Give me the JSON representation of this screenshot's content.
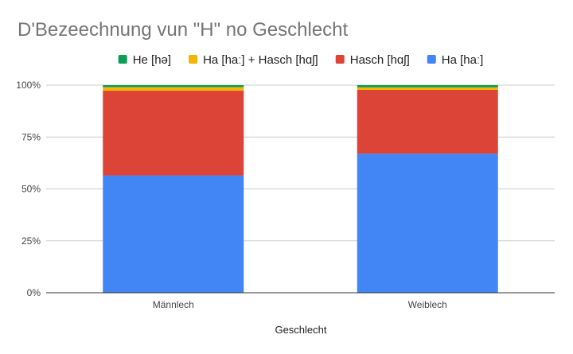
{
  "chart_data": {
    "type": "bar",
    "stacked": "percent",
    "title": "D'Bezeechnung vun \"H\" no Geschlecht",
    "xlabel": "Geschlecht",
    "ylabel": "",
    "categories": [
      "Männlech",
      "Weiblech"
    ],
    "ylim": [
      0,
      100
    ],
    "yticks": [
      "0%",
      "25%",
      "50%",
      "75%",
      "100%"
    ],
    "grid": true,
    "legend_position": "top",
    "legend_order": [
      "He [hə]",
      "Ha [haː] + Hasch [hɑʃ]",
      "Hasch [hɑʃ]",
      "Ha [haː]"
    ],
    "series": [
      {
        "name": "Ha [haː]",
        "color": "#4285F4",
        "values": [
          56.5,
          67
        ]
      },
      {
        "name": "Hasch [hɑʃ]",
        "color": "#DB4437",
        "values": [
          40.8,
          30.7
        ]
      },
      {
        "name": "Ha [haː] + Hasch [hɑʃ]",
        "color": "#F4B400",
        "values": [
          1.7,
          1.2
        ]
      },
      {
        "name": "He [hə]",
        "color": "#0F9D58",
        "values": [
          1.0,
          1.1
        ]
      }
    ]
  }
}
